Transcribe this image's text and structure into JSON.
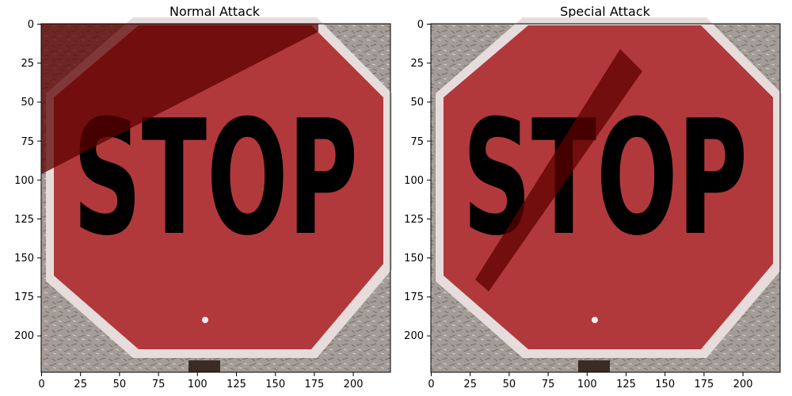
{
  "panels": [
    {
      "title": "Normal Attack",
      "sign_text": "STOP",
      "attack": "triangle-patch"
    },
    {
      "title": "Special Attack",
      "sign_text": "STOP",
      "attack": "diagonal-bar"
    }
  ],
  "axes": {
    "x_ticks": [
      "0",
      "25",
      "50",
      "75",
      "100",
      "125",
      "150",
      "175",
      "200"
    ],
    "y_ticks": [
      "0",
      "25",
      "50",
      "75",
      "100",
      "125",
      "150",
      "175",
      "200"
    ],
    "x_range": [
      0,
      224
    ],
    "y_range": [
      0,
      224
    ]
  },
  "colors": {
    "sign_red": "#b1393b",
    "sign_border": "#e7dcdc",
    "letters": "#e5dada",
    "background": "#a39c97",
    "attack_dark": "#5d0000"
  }
}
